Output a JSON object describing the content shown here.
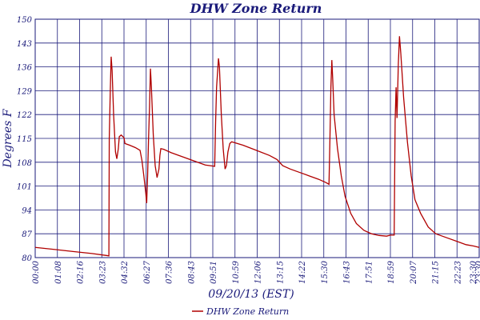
{
  "chart_data": {
    "type": "line",
    "title": "DHW Zone Return",
    "xlabel": "09/20/13 (EST)",
    "ylabel": "Degrees F",
    "ylim": [
      80,
      150
    ],
    "yticks": [
      "80",
      "87",
      "94",
      "101",
      "108",
      "115",
      "122",
      "129",
      "136",
      "143",
      "150"
    ],
    "xtick_labels": [
      "00:00",
      "01:08",
      "02:16",
      "03:23",
      "04:32",
      "06:27",
      "07:36",
      "08:43",
      "09:51",
      "10:59",
      "12:06",
      "13:15",
      "14:22",
      "15:30",
      "16:43",
      "17:51",
      "18:59",
      "20:07",
      "21:15",
      "22:23",
      "23:30",
      "23:30"
    ],
    "grid": true,
    "legend": "bottom-center",
    "series": [
      {
        "name": "DHW Zone Return",
        "color": "#b00000",
        "points": [
          [
            0.0,
            83.0
          ],
          [
            1.0,
            82.4
          ],
          [
            2.0,
            81.8
          ],
          [
            3.0,
            81.2
          ],
          [
            3.8,
            80.6
          ],
          [
            3.9,
            80.5
          ],
          [
            3.92,
            115.0
          ],
          [
            3.97,
            128.0
          ],
          [
            4.02,
            139.0
          ],
          [
            4.07,
            135.0
          ],
          [
            4.15,
            122.0
          ],
          [
            4.25,
            111.0
          ],
          [
            4.32,
            109.0
          ],
          [
            4.4,
            112.0
          ],
          [
            4.45,
            115.5
          ],
          [
            4.55,
            116.0
          ],
          [
            4.7,
            115.2
          ],
          [
            4.75,
            113.5
          ],
          [
            5.0,
            113.0
          ],
          [
            5.3,
            112.3
          ],
          [
            5.55,
            111.5
          ],
          [
            5.65,
            108.5
          ],
          [
            5.75,
            104.0
          ],
          [
            5.85,
            99.0
          ],
          [
            5.9,
            96.0
          ],
          [
            5.95,
            104.0
          ],
          [
            6.0,
            115.0
          ],
          [
            6.05,
            124.0
          ],
          [
            6.1,
            135.5
          ],
          [
            6.15,
            130.0
          ],
          [
            6.25,
            116.0
          ],
          [
            6.35,
            107.0
          ],
          [
            6.45,
            103.5
          ],
          [
            6.55,
            106.0
          ],
          [
            6.6,
            110.0
          ],
          [
            6.65,
            112.0
          ],
          [
            6.8,
            111.8
          ],
          [
            7.2,
            110.8
          ],
          [
            7.8,
            109.6
          ],
          [
            8.4,
            108.4
          ],
          [
            9.0,
            107.2
          ],
          [
            9.5,
            106.8
          ],
          [
            9.55,
            120.0
          ],
          [
            9.6,
            130.0
          ],
          [
            9.7,
            138.5
          ],
          [
            9.75,
            136.0
          ],
          [
            9.85,
            122.0
          ],
          [
            9.95,
            112.0
          ],
          [
            10.05,
            106.0
          ],
          [
            10.12,
            107.0
          ],
          [
            10.2,
            111.0
          ],
          [
            10.3,
            113.5
          ],
          [
            10.4,
            114.0
          ],
          [
            11.0,
            113.0
          ],
          [
            11.7,
            111.5
          ],
          [
            12.4,
            110.0
          ],
          [
            12.8,
            108.8
          ],
          [
            13.1,
            107.0
          ],
          [
            13.5,
            106.0
          ],
          [
            14.0,
            105.0
          ],
          [
            14.5,
            104.0
          ],
          [
            15.0,
            103.0
          ],
          [
            15.4,
            102.0
          ],
          [
            15.55,
            101.5
          ],
          [
            15.6,
            115.0
          ],
          [
            15.65,
            130.0
          ],
          [
            15.7,
            138.0
          ],
          [
            15.75,
            132.0
          ],
          [
            15.82,
            122.0
          ],
          [
            16.0,
            112.0
          ],
          [
            16.2,
            104.0
          ],
          [
            16.4,
            98.0
          ],
          [
            16.7,
            93.0
          ],
          [
            17.0,
            90.0
          ],
          [
            17.4,
            88.0
          ],
          [
            17.8,
            87.0
          ],
          [
            18.2,
            86.5
          ],
          [
            18.6,
            86.3
          ],
          [
            18.8,
            86.6
          ],
          [
            19.0,
            86.6
          ],
          [
            19.05,
            120.0
          ],
          [
            19.1,
            130.0
          ],
          [
            19.15,
            121.0
          ],
          [
            19.22,
            137.0
          ],
          [
            19.28,
            145.0
          ],
          [
            19.35,
            140.0
          ],
          [
            19.5,
            127.0
          ],
          [
            19.7,
            114.0
          ],
          [
            19.9,
            104.0
          ],
          [
            20.1,
            97.0
          ],
          [
            20.4,
            93.0
          ],
          [
            20.8,
            89.0
          ],
          [
            21.2,
            87.0
          ],
          [
            21.8,
            85.8
          ],
          [
            22.4,
            84.6
          ],
          [
            22.8,
            83.8
          ],
          [
            23.2,
            83.4
          ],
          [
            23.5,
            83.0
          ]
        ]
      }
    ]
  }
}
